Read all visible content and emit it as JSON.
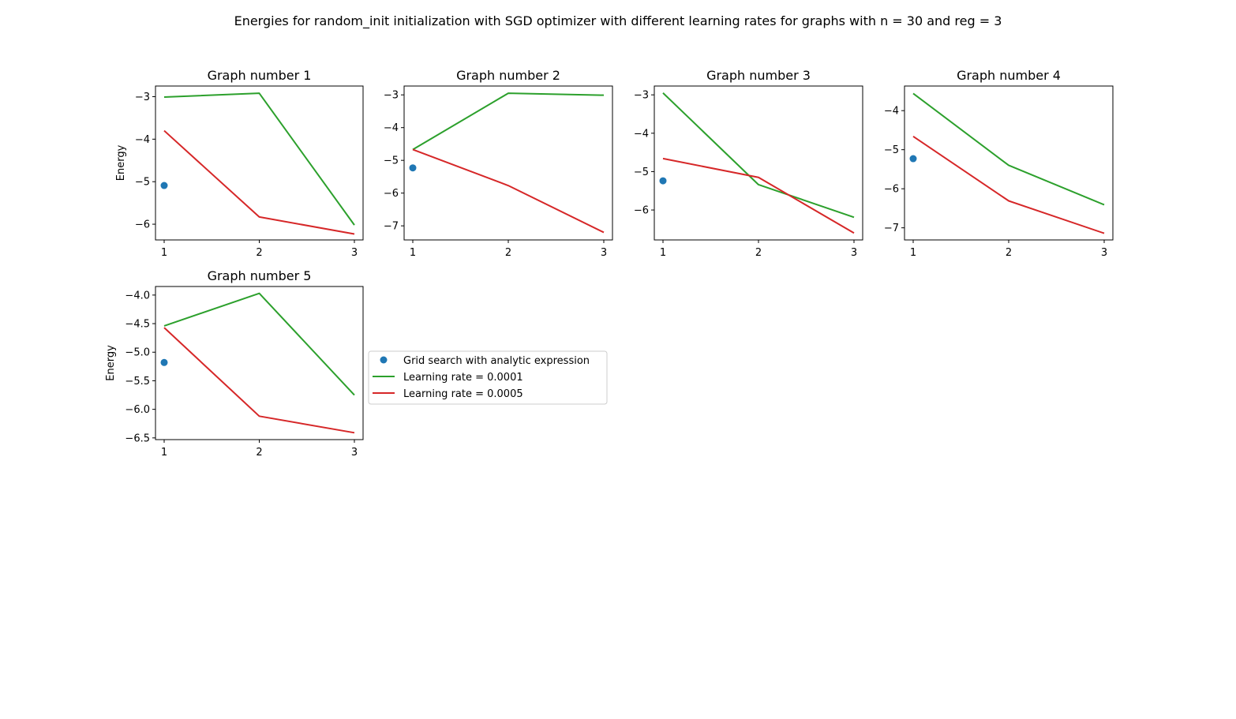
{
  "suptitle": "Energies for random_init initialization with SGD optimizer with different learning rates for graphs with n = 30 and reg = 3",
  "legend": {
    "placement": "right of Graph number 5",
    "entries": [
      {
        "label": "Grid search with analytic expression",
        "marker": "dot",
        "color": "#1f77b4"
      },
      {
        "label": "Learning rate = 0.0001",
        "marker": "line",
        "color": "#2ca02c"
      },
      {
        "label": "Learning rate = 0.0005",
        "marker": "line",
        "color": "#d62728"
      }
    ]
  },
  "chart_data": [
    {
      "type": "line",
      "title": "Graph number 1",
      "xlabel": "",
      "ylabel": "Energy",
      "x": [
        1,
        2,
        3
      ],
      "xticks": [
        "1",
        "2",
        "3"
      ],
      "yticks": [
        -3,
        -4,
        -5,
        -6
      ],
      "ytick_labels": [
        "−3",
        "−4",
        "−5",
        "−6"
      ],
      "ylim": [
        -6.37,
        -2.75
      ],
      "grid": false,
      "series": [
        {
          "name": "Grid search with analytic expression",
          "kind": "scatter",
          "color": "#1f77b4",
          "x": [
            1
          ],
          "values": [
            -5.09
          ]
        },
        {
          "name": "Learning rate = 0.0001",
          "kind": "line",
          "color": "#2ca02c",
          "values": [
            -3.01,
            -2.92,
            -6.02
          ]
        },
        {
          "name": "Learning rate = 0.0005",
          "kind": "line",
          "color": "#d62728",
          "values": [
            -3.8,
            -5.83,
            -6.23
          ]
        }
      ]
    },
    {
      "type": "line",
      "title": "Graph number 2",
      "xlabel": "",
      "ylabel": "",
      "x": [
        1,
        2,
        3
      ],
      "xticks": [
        "1",
        "2",
        "3"
      ],
      "yticks": [
        -3,
        -4,
        -5,
        -6,
        -7
      ],
      "ytick_labels": [
        "−3",
        "−4",
        "−5",
        "−6",
        "−7"
      ],
      "ylim": [
        -7.43,
        -2.73
      ],
      "grid": false,
      "series": [
        {
          "name": "Grid search with analytic expression",
          "kind": "scatter",
          "color": "#1f77b4",
          "x": [
            1
          ],
          "values": [
            -5.23
          ]
        },
        {
          "name": "Learning rate = 0.0001",
          "kind": "line",
          "color": "#2ca02c",
          "values": [
            -4.67,
            -2.95,
            -3.01
          ]
        },
        {
          "name": "Learning rate = 0.0005",
          "kind": "line",
          "color": "#d62728",
          "values": [
            -4.67,
            -5.77,
            -7.2
          ]
        }
      ]
    },
    {
      "type": "line",
      "title": "Graph number 3",
      "xlabel": "",
      "ylabel": "",
      "x": [
        1,
        2,
        3
      ],
      "xticks": [
        "1",
        "2",
        "3"
      ],
      "yticks": [
        -3,
        -4,
        -5,
        -6
      ],
      "ytick_labels": [
        "−3",
        "−4",
        "−5",
        "−6"
      ],
      "ylim": [
        -6.78,
        -2.77
      ],
      "grid": false,
      "series": [
        {
          "name": "Grid search with analytic expression",
          "kind": "scatter",
          "color": "#1f77b4",
          "x": [
            1
          ],
          "values": [
            -5.24
          ]
        },
        {
          "name": "Learning rate = 0.0001",
          "kind": "line",
          "color": "#2ca02c",
          "values": [
            -2.95,
            -5.34,
            -6.19
          ]
        },
        {
          "name": "Learning rate = 0.0005",
          "kind": "line",
          "color": "#d62728",
          "values": [
            -4.66,
            -5.15,
            -6.6
          ]
        }
      ]
    },
    {
      "type": "line",
      "title": "Graph number 4",
      "xlabel": "",
      "ylabel": "",
      "x": [
        1,
        2,
        3
      ],
      "xticks": [
        "1",
        "2",
        "3"
      ],
      "yticks": [
        -4,
        -5,
        -6,
        -7
      ],
      "ytick_labels": [
        "−4",
        "−5",
        "−6",
        "−7"
      ],
      "ylim": [
        -7.31,
        -3.37
      ],
      "grid": false,
      "series": [
        {
          "name": "Grid search with analytic expression",
          "kind": "scatter",
          "color": "#1f77b4",
          "x": [
            1
          ],
          "values": [
            -5.23
          ]
        },
        {
          "name": "Learning rate = 0.0001",
          "kind": "line",
          "color": "#2ca02c",
          "values": [
            -3.56,
            -5.4,
            -6.41
          ]
        },
        {
          "name": "Learning rate = 0.0005",
          "kind": "line",
          "color": "#d62728",
          "values": [
            -4.66,
            -6.31,
            -7.14
          ]
        }
      ]
    },
    {
      "type": "line",
      "title": "Graph number 5",
      "xlabel": "",
      "ylabel": "Energy",
      "x": [
        1,
        2,
        3
      ],
      "xticks": [
        "1",
        "2",
        "3"
      ],
      "yticks": [
        -4.0,
        -4.5,
        -5.0,
        -5.5,
        -6.0,
        -6.5
      ],
      "ytick_labels": [
        "−4.0",
        "−4.5",
        "−5.0",
        "−5.5",
        "−6.0",
        "−6.5"
      ],
      "ylim": [
        -6.53,
        -3.85
      ],
      "grid": false,
      "series": [
        {
          "name": "Grid search with analytic expression",
          "kind": "scatter",
          "color": "#1f77b4",
          "x": [
            1
          ],
          "values": [
            -5.18
          ]
        },
        {
          "name": "Learning rate = 0.0001",
          "kind": "line",
          "color": "#2ca02c",
          "values": [
            -4.54,
            -3.97,
            -5.75
          ]
        },
        {
          "name": "Learning rate = 0.0005",
          "kind": "line",
          "color": "#d62728",
          "values": [
            -4.57,
            -6.12,
            -6.41
          ]
        }
      ]
    }
  ]
}
